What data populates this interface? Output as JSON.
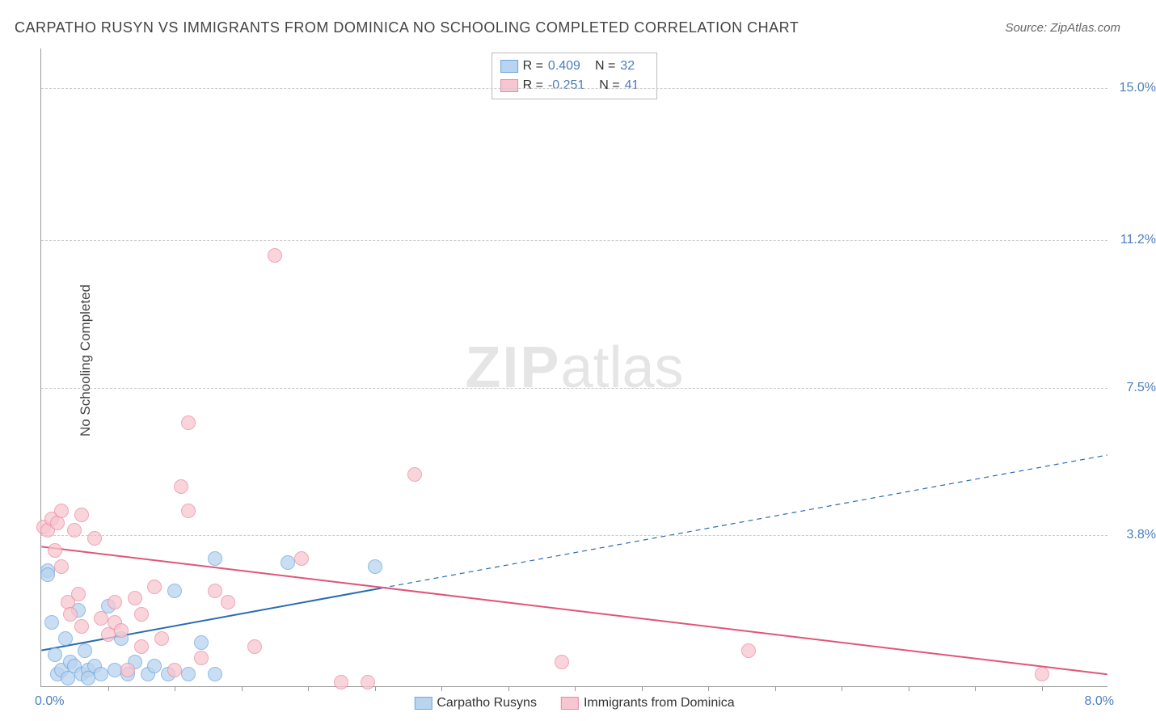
{
  "title": "CARPATHO RUSYN VS IMMIGRANTS FROM DOMINICA NO SCHOOLING COMPLETED CORRELATION CHART",
  "source": "Source: ZipAtlas.com",
  "yaxis_title": "No Schooling Completed",
  "watermark_bold": "ZIP",
  "watermark_light": "atlas",
  "xaxis": {
    "min": 0.0,
    "max": 8.0,
    "label_min": "0.0%",
    "label_max": "8.0%",
    "tick_step": 0.5
  },
  "yaxis": {
    "min": 0.0,
    "max": 16.0,
    "gridlines": [
      {
        "v": 3.8,
        "label": "3.8%"
      },
      {
        "v": 7.5,
        "label": "7.5%"
      },
      {
        "v": 11.2,
        "label": "11.2%"
      },
      {
        "v": 15.0,
        "label": "15.0%"
      }
    ]
  },
  "legend_top": [
    {
      "swatch_fill": "#b8d4f0",
      "swatch_border": "#6ea6de",
      "r": "0.409",
      "n": "32"
    },
    {
      "swatch_fill": "#f7c6d0",
      "swatch_border": "#e98ba2",
      "r": "-0.251",
      "n": "41"
    }
  ],
  "legend_bottom": [
    {
      "swatch_fill": "#b8d4f0",
      "swatch_border": "#6ea6de",
      "label": "Carpatho Rusyns"
    },
    {
      "swatch_fill": "#f7c6d0",
      "swatch_border": "#e98ba2",
      "label": "Immigrants from Dominica"
    }
  ],
  "series": [
    {
      "name": "Carpatho Rusyns",
      "fill": "#b8d4f0",
      "border": "#6ea6de",
      "opacity": 0.75,
      "r": 9,
      "trend_color": "#2b6cb0",
      "trend_width": 2,
      "trend": {
        "x1": 0.0,
        "y1": 0.9,
        "x2_solid": 2.55,
        "x2": 8.0,
        "y2": 5.8
      },
      "points": [
        [
          0.05,
          2.9
        ],
        [
          0.08,
          1.6
        ],
        [
          0.1,
          0.8
        ],
        [
          0.12,
          0.3
        ],
        [
          0.15,
          0.4
        ],
        [
          0.18,
          1.2
        ],
        [
          0.2,
          0.2
        ],
        [
          0.22,
          0.6
        ],
        [
          0.25,
          0.5
        ],
        [
          0.28,
          1.9
        ],
        [
          0.3,
          0.3
        ],
        [
          0.33,
          0.9
        ],
        [
          0.35,
          0.4
        ],
        [
          0.4,
          0.5
        ],
        [
          0.45,
          0.3
        ],
        [
          0.5,
          2.0
        ],
        [
          0.55,
          0.4
        ],
        [
          0.6,
          1.2
        ],
        [
          0.65,
          0.3
        ],
        [
          0.7,
          0.6
        ],
        [
          0.8,
          0.3
        ],
        [
          0.85,
          0.5
        ],
        [
          0.95,
          0.3
        ],
        [
          1.0,
          2.4
        ],
        [
          1.1,
          0.3
        ],
        [
          1.2,
          1.1
        ],
        [
          1.3,
          0.3
        ],
        [
          1.3,
          3.2
        ],
        [
          1.85,
          3.1
        ],
        [
          2.5,
          3.0
        ],
        [
          0.05,
          2.8
        ],
        [
          0.35,
          0.2
        ]
      ]
    },
    {
      "name": "Immigrants from Dominica",
      "fill": "#f7c6d0",
      "border": "#e98ba2",
      "opacity": 0.75,
      "r": 9,
      "trend_color": "#e05577",
      "trend_width": 2,
      "trend": {
        "x1": 0.0,
        "y1": 3.5,
        "x2_solid": 8.0,
        "x2": 8.0,
        "y2": 0.3
      },
      "points": [
        [
          0.02,
          4.0
        ],
        [
          0.05,
          3.9
        ],
        [
          0.08,
          4.2
        ],
        [
          0.1,
          3.4
        ],
        [
          0.12,
          4.1
        ],
        [
          0.15,
          3.0
        ],
        [
          0.15,
          4.4
        ],
        [
          0.2,
          2.1
        ],
        [
          0.22,
          1.8
        ],
        [
          0.25,
          3.9
        ],
        [
          0.28,
          2.3
        ],
        [
          0.3,
          1.5
        ],
        [
          0.3,
          4.3
        ],
        [
          0.4,
          3.7
        ],
        [
          0.45,
          1.7
        ],
        [
          0.5,
          1.3
        ],
        [
          0.55,
          2.1
        ],
        [
          0.55,
          1.6
        ],
        [
          0.6,
          1.4
        ],
        [
          0.65,
          0.4
        ],
        [
          0.7,
          2.2
        ],
        [
          0.75,
          1.0
        ],
        [
          0.75,
          1.8
        ],
        [
          0.85,
          2.5
        ],
        [
          0.9,
          1.2
        ],
        [
          1.0,
          0.4
        ],
        [
          1.05,
          5.0
        ],
        [
          1.1,
          4.4
        ],
        [
          1.1,
          6.6
        ],
        [
          1.2,
          0.7
        ],
        [
          1.3,
          2.4
        ],
        [
          1.4,
          2.1
        ],
        [
          1.75,
          10.8
        ],
        [
          1.95,
          3.2
        ],
        [
          2.25,
          0.1
        ],
        [
          2.45,
          0.1
        ],
        [
          2.8,
          5.3
        ],
        [
          3.9,
          0.6
        ],
        [
          5.3,
          0.9
        ],
        [
          7.5,
          0.3
        ],
        [
          1.6,
          1.0
        ]
      ]
    }
  ]
}
